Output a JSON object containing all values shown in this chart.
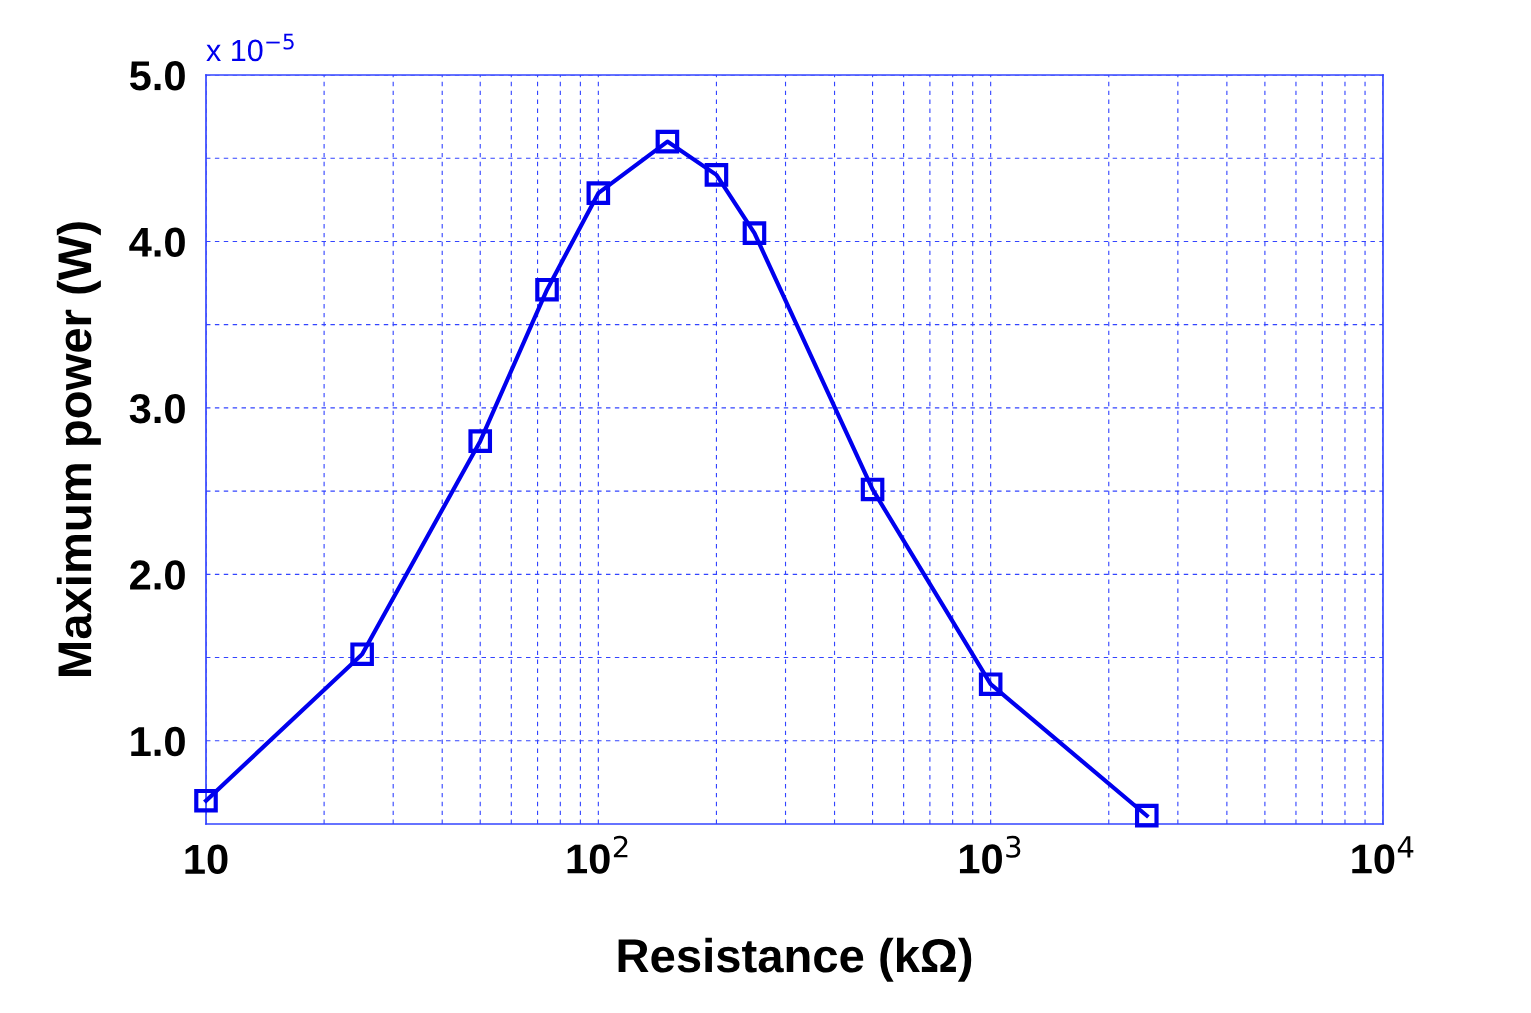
{
  "chart_data": {
    "type": "line",
    "xlabel": "Resistance (kΩ)",
    "ylabel": "Maximum power (W)",
    "log": "x",
    "grid": true,
    "marker": "square",
    "line_style": "solid",
    "x": [
      10,
      25,
      50,
      74,
      100,
      150,
      200,
      250,
      500,
      1000,
      2500
    ],
    "series": [
      {
        "color": "#0000ee",
        "values": [
          0.64,
          1.52,
          2.8,
          3.71,
          4.29,
          4.6,
          4.4,
          4.05,
          2.51,
          1.34,
          0.55
        ]
      }
    ],
    "xlim": [
      10,
      10000
    ],
    "xticks": [
      {
        "value": 10,
        "label": "10"
      },
      {
        "value": 100,
        "label": "10$^{2}$"
      },
      {
        "value": 1000,
        "label": "10$^{3}$"
      },
      {
        "value": 10000,
        "label": "10$^{4}$"
      }
    ],
    "ylim": [
      0.5,
      5.0
    ],
    "yticks": [
      {
        "value": 1.0,
        "label": "1.0"
      },
      {
        "value": 1.5,
        "label": null
      },
      {
        "value": 2.0,
        "label": "2.0"
      },
      {
        "value": 2.5,
        "label": null
      },
      {
        "value": 3.0,
        "label": "3.0"
      },
      {
        "value": 3.5,
        "label": null
      },
      {
        "value": 4.0,
        "label": "4.0"
      },
      {
        "value": 4.5,
        "label": null
      },
      {
        "value": 5.0,
        "label": "5.0"
      }
    ],
    "annotations": [
      "x 10$^{−5}$"
    ]
  }
}
